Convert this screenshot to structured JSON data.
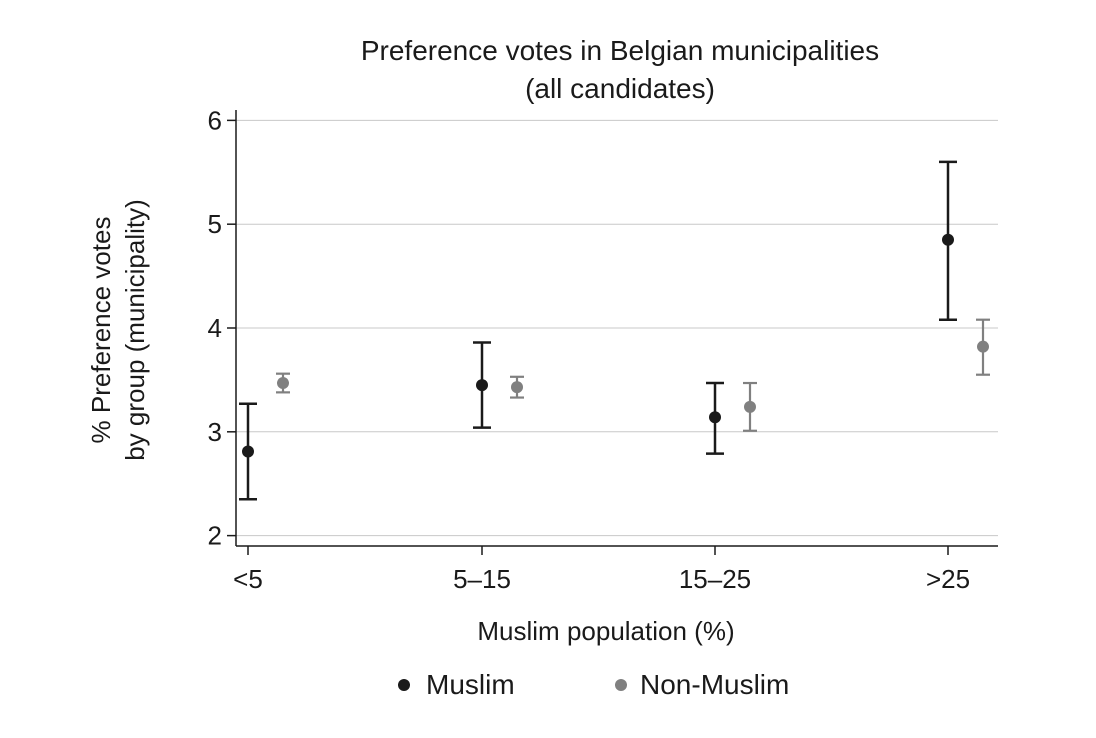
{
  "chart_data": {
    "type": "scatter",
    "title": "Preference votes in Belgian municipalities",
    "subtitle": "(all candidates)",
    "xlabel": "Muslim population (%)",
    "ylabel_line1": "% Preference votes",
    "ylabel_line2": "by group (municipality)",
    "categories": [
      "<5",
      "5–15",
      "15–25",
      ">25"
    ],
    "ylim": [
      1.9,
      6.1
    ],
    "yticks": [
      2,
      3,
      4,
      5,
      6
    ],
    "grid": true,
    "legend_position": "bottom",
    "series": [
      {
        "name": "Muslim",
        "color": "#1a1a1a",
        "values": [
          2.81,
          3.45,
          3.14,
          4.85
        ],
        "lower": [
          2.35,
          3.04,
          2.79,
          4.08
        ],
        "upper": [
          3.27,
          3.86,
          3.47,
          5.6
        ]
      },
      {
        "name": "Non-Muslim",
        "color": "#808080",
        "values": [
          3.47,
          3.43,
          3.24,
          3.82
        ],
        "lower": [
          3.38,
          3.33,
          3.01,
          3.55
        ],
        "upper": [
          3.56,
          3.53,
          3.47,
          4.08
        ]
      }
    ]
  }
}
